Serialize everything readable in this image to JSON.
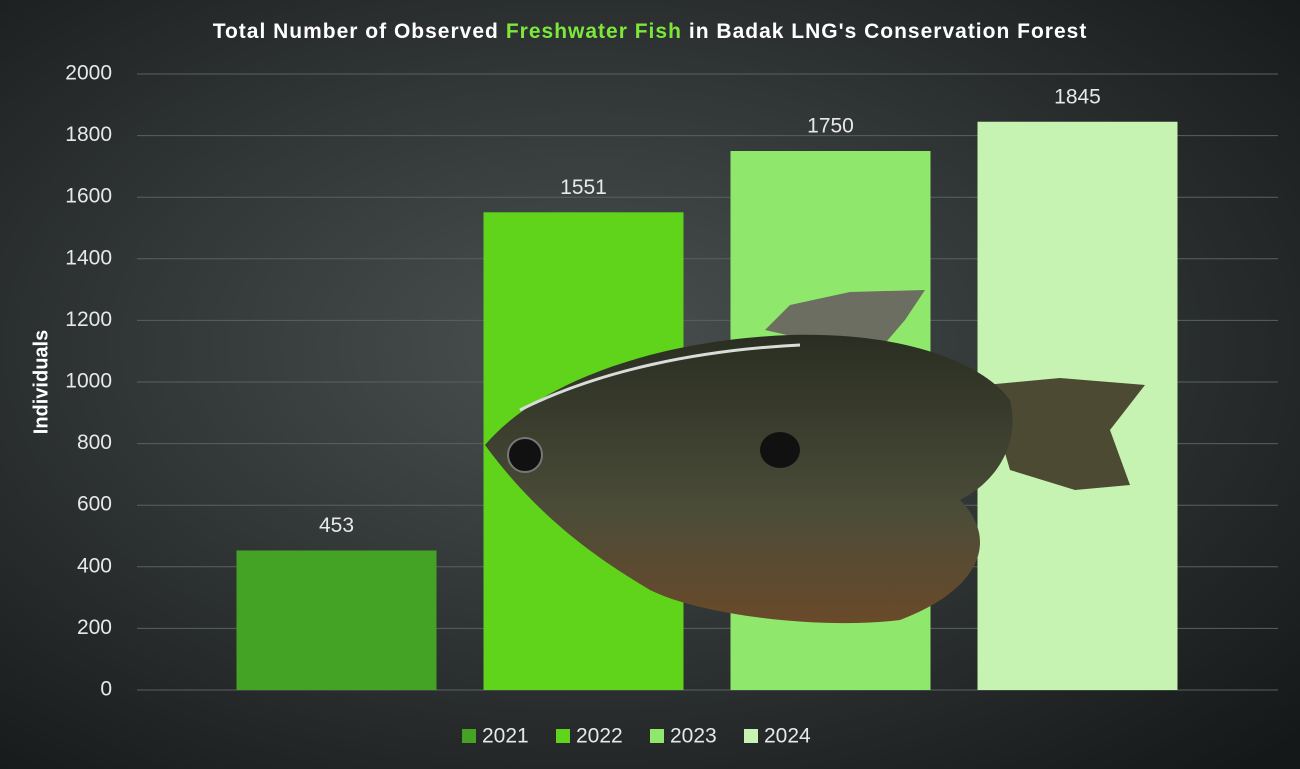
{
  "chart_data": {
    "type": "bar",
    "title": [
      "Total Number of Observed",
      "Freshwater Fish",
      "in Badak LNG's Conservation Forest"
    ],
    "y_label": "Individuals",
    "categories": [
      "2021",
      "2022",
      "2023",
      "2024"
    ],
    "values": [
      453,
      1551,
      1750,
      1845
    ],
    "colors": [
      "#44a325",
      "#5fd41a",
      "#8fe86c",
      "#c6f2b2"
    ],
    "ylim": [
      0,
      2000
    ],
    "yticks": [
      0,
      200,
      400,
      600,
      800,
      1000,
      1200,
      1400,
      1600,
      1800,
      2000
    ],
    "grid": true,
    "legend": "bottom"
  }
}
